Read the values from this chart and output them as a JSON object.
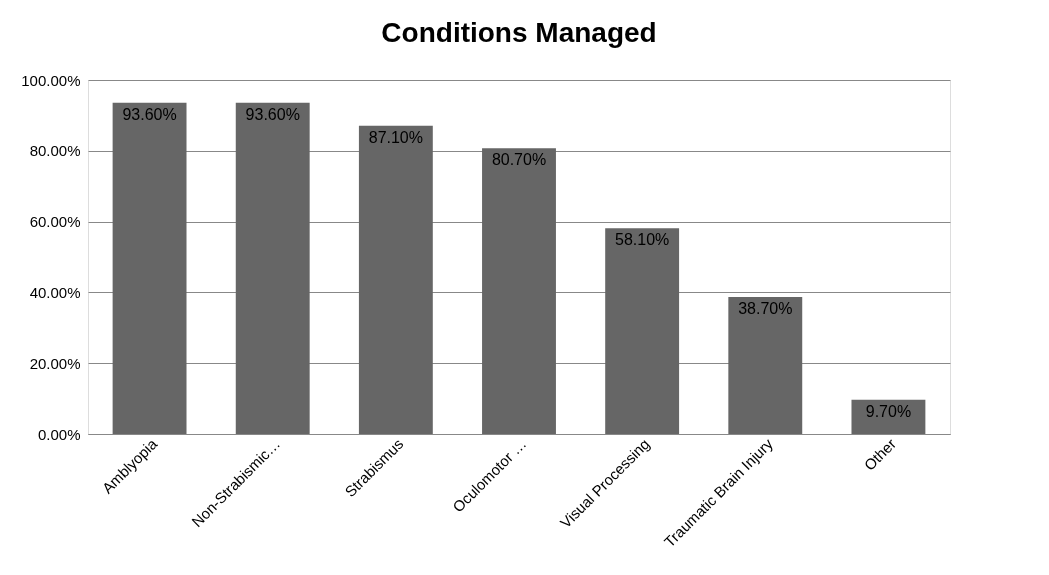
{
  "chart_data": {
    "type": "bar",
    "title": "Conditions Managed",
    "categories": [
      "Amblyopia",
      "Non-Strabismic…",
      "Strabismus",
      "Oculomotor …",
      "Visual Processing",
      "Traumatic Brain Injury",
      "Other"
    ],
    "values": [
      93.6,
      93.6,
      87.1,
      80.7,
      58.1,
      38.7,
      9.7
    ],
    "value_labels": [
      "93.60%",
      "93.60%",
      "87.10%",
      "80.70%",
      "58.10%",
      "38.70%",
      "9.70%"
    ],
    "color": "#666666",
    "ylim": [
      0,
      100
    ],
    "yticks": [
      {
        "value": 0,
        "label": "0.00%"
      },
      {
        "value": 20,
        "label": "20.00%"
      },
      {
        "value": 40,
        "label": "40.00%"
      },
      {
        "value": 60,
        "label": "60.00%"
      },
      {
        "value": 80,
        "label": "80.00%"
      },
      {
        "value": 100,
        "label": "100.00%"
      }
    ],
    "grid": "y"
  }
}
